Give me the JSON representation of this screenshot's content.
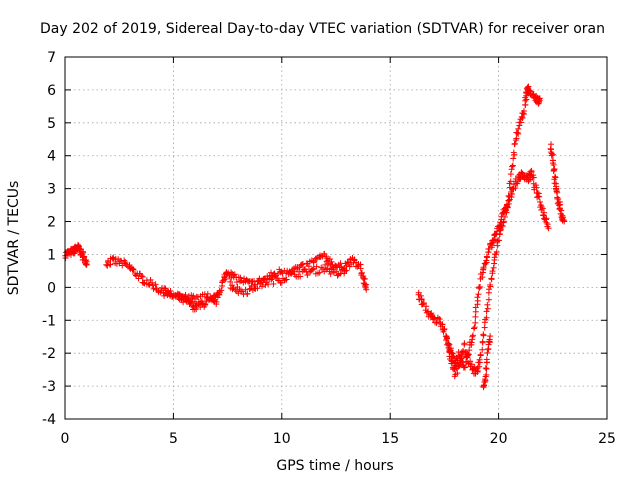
{
  "chart_data": {
    "type": "scatter",
    "title": "Day 202 of 2019, Sidereal Day-to-day VTEC variation (SDTVAR) for receiver oran",
    "xlabel": "GPS time / hours",
    "ylabel": "SDTVAR / TECUs",
    "xlim": [
      0,
      25
    ],
    "ylim": [
      -4,
      7
    ],
    "xticks": [
      "0",
      "5",
      "10",
      "15",
      "20",
      "25"
    ],
    "yticks": [
      "-4",
      "-3",
      "-2",
      "-1",
      "0",
      "1",
      "2",
      "3",
      "4",
      "5",
      "6",
      "7"
    ],
    "grid": true,
    "marker": "+",
    "series": [
      {
        "name": "SDTVAR",
        "color": "#ff0000",
        "segments": [
          [
            [
              0.0,
              1.0
            ],
            [
              0.2,
              1.05
            ],
            [
              0.4,
              1.1
            ],
            [
              0.5,
              1.15
            ],
            [
              0.6,
              1.2
            ],
            [
              0.7,
              1.1
            ],
            [
              0.8,
              1.0
            ],
            [
              0.9,
              0.85
            ],
            [
              1.0,
              0.75
            ]
          ],
          [
            [
              1.9,
              0.75
            ],
            [
              2.2,
              0.8
            ],
            [
              2.6,
              0.75
            ],
            [
              3.0,
              0.6
            ],
            [
              3.3,
              0.4
            ],
            [
              3.6,
              0.25
            ],
            [
              4.0,
              0.1
            ],
            [
              4.4,
              -0.1
            ],
            [
              4.8,
              -0.2
            ],
            [
              5.2,
              -0.3
            ],
            [
              5.5,
              -0.4
            ],
            [
              5.8,
              -0.5
            ],
            [
              6.0,
              -0.6
            ],
            [
              6.3,
              -0.55
            ],
            [
              6.6,
              -0.4
            ],
            [
              6.9,
              -0.5
            ],
            [
              7.1,
              -0.2
            ],
            [
              7.3,
              0.2
            ],
            [
              7.5,
              0.5
            ],
            [
              7.8,
              0.3
            ],
            [
              8.2,
              0.2
            ],
            [
              8.6,
              0.1
            ],
            [
              9.0,
              0.2
            ],
            [
              9.5,
              0.35
            ],
            [
              10.0,
              0.5
            ],
            [
              10.5,
              0.55
            ],
            [
              11.0,
              0.6
            ],
            [
              11.5,
              0.8
            ],
            [
              11.9,
              0.95
            ],
            [
              12.2,
              0.8
            ],
            [
              12.6,
              0.6
            ],
            [
              13.0,
              0.7
            ],
            [
              13.3,
              0.8
            ],
            [
              13.6,
              0.6
            ],
            [
              13.8,
              0.2
            ],
            [
              13.9,
              0.0
            ]
          ],
          [
            [
              4.5,
              -0.1
            ],
            [
              5.0,
              -0.2
            ],
            [
              5.5,
              -0.3
            ],
            [
              6.0,
              -0.35
            ],
            [
              6.5,
              -0.3
            ],
            [
              7.0,
              -0.2
            ]
          ],
          [
            [
              7.6,
              0.1
            ],
            [
              8.0,
              -0.1
            ],
            [
              8.5,
              -0.1
            ],
            [
              9.0,
              0.1
            ],
            [
              9.5,
              0.2
            ],
            [
              10.0,
              0.25
            ],
            [
              10.5,
              0.4
            ],
            [
              11.0,
              0.45
            ],
            [
              11.5,
              0.5
            ],
            [
              12.0,
              0.6
            ],
            [
              12.5,
              0.4
            ],
            [
              13.0,
              0.5
            ]
          ],
          [
            [
              16.3,
              -0.2
            ],
            [
              16.5,
              -0.5
            ],
            [
              16.8,
              -0.8
            ],
            [
              17.0,
              -1.0
            ],
            [
              17.3,
              -1.0
            ],
            [
              17.5,
              -1.3
            ],
            [
              17.7,
              -1.8
            ],
            [
              17.8,
              -2.0
            ],
            [
              18.0,
              -2.3
            ],
            [
              18.2,
              -2.0
            ],
            [
              18.4,
              -2.5
            ],
            [
              18.6,
              -2.0
            ],
            [
              18.8,
              -1.5
            ],
            [
              19.0,
              -0.5
            ],
            [
              19.2,
              0.3
            ],
            [
              19.4,
              0.8
            ],
            [
              19.6,
              1.2
            ],
            [
              19.8,
              1.5
            ],
            [
              20.0,
              1.8
            ],
            [
              20.2,
              2.2
            ],
            [
              20.4,
              2.5
            ],
            [
              20.6,
              2.9
            ],
            [
              20.8,
              3.2
            ],
            [
              21.0,
              3.4
            ],
            [
              21.2,
              3.4
            ],
            [
              21.4,
              3.3
            ],
            [
              21.5,
              3.5
            ],
            [
              21.7,
              3.0
            ],
            [
              21.9,
              2.6
            ],
            [
              22.1,
              2.2
            ],
            [
              22.3,
              1.9
            ]
          ],
          [
            [
              17.6,
              -1.5
            ],
            [
              17.8,
              -2.2
            ],
            [
              18.0,
              -2.6
            ],
            [
              18.2,
              -2.4
            ],
            [
              18.4,
              -1.8
            ],
            [
              18.6,
              -2.2
            ],
            [
              18.8,
              -2.5
            ],
            [
              19.0,
              -2.6
            ],
            [
              19.2,
              -2.0
            ],
            [
              19.4,
              -1.0
            ],
            [
              19.6,
              0.0
            ],
            [
              19.8,
              0.8
            ],
            [
              20.0,
              1.5
            ],
            [
              20.2,
              2.0
            ],
            [
              20.4,
              2.4
            ],
            [
              20.6,
              3.5
            ],
            [
              20.8,
              4.5
            ],
            [
              21.0,
              5.0
            ],
            [
              21.2,
              5.5
            ],
            [
              21.3,
              6.0
            ],
            [
              21.4,
              6.0
            ],
            [
              21.6,
              5.8
            ],
            [
              21.8,
              5.7
            ],
            [
              21.9,
              5.65
            ]
          ],
          [
            [
              19.3,
              -3.0
            ],
            [
              19.4,
              -2.7
            ],
            [
              19.5,
              -2.0
            ],
            [
              19.6,
              -1.5
            ]
          ],
          [
            [
              22.4,
              4.3
            ],
            [
              22.5,
              3.8
            ],
            [
              22.6,
              3.3
            ],
            [
              22.7,
              2.8
            ],
            [
              22.8,
              2.5
            ],
            [
              22.9,
              2.2
            ],
            [
              23.0,
              2.0
            ]
          ]
        ]
      }
    ]
  }
}
